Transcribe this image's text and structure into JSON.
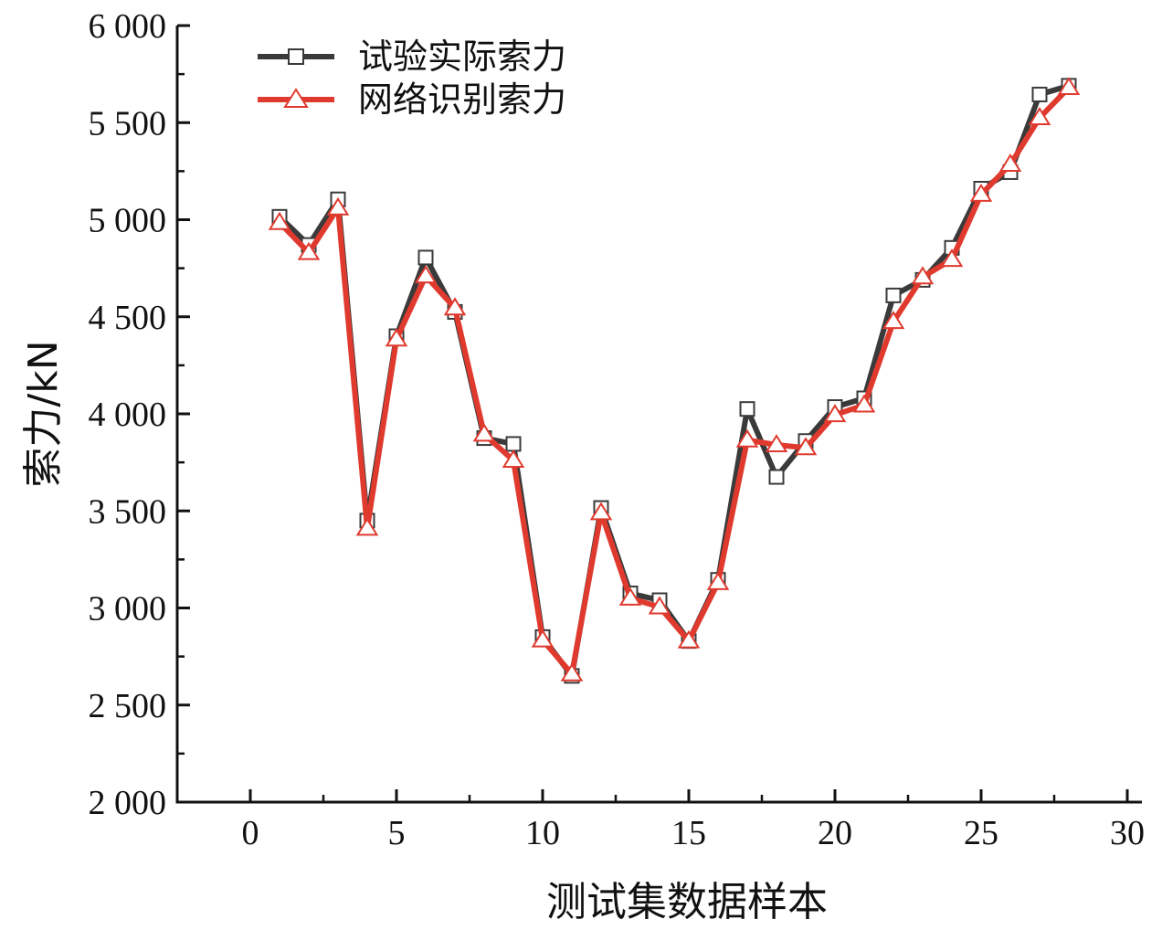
{
  "chart_data": {
    "type": "line",
    "xlabel": "测试集数据样本",
    "ylabel": "索力/kN",
    "xlim": [
      -2.5,
      30.5
    ],
    "ylim": [
      2000,
      6000
    ],
    "x_ticks": [
      0,
      5,
      10,
      15,
      20,
      25,
      30
    ],
    "x_tick_labels": [
      "0",
      "5",
      "10",
      "15",
      "20",
      "25",
      "30"
    ],
    "y_ticks": [
      2000,
      2500,
      3000,
      3500,
      4000,
      4500,
      5000,
      5500,
      6000
    ],
    "y_tick_labels": [
      "2 000",
      "2 500",
      "3 000",
      "3 500",
      "4 000",
      "4 500",
      "5 000",
      "5 500",
      "6 000"
    ],
    "legend_position": "top-left",
    "grid": false,
    "x": [
      1,
      2,
      3,
      4,
      5,
      6,
      7,
      8,
      9,
      10,
      11,
      12,
      13,
      14,
      15,
      16,
      17,
      18,
      19,
      20,
      21,
      22,
      23,
      24,
      25,
      26,
      27,
      28
    ],
    "series": [
      {
        "name": "试验实际索力",
        "color": "#3a3a3a",
        "marker": "square",
        "values": [
          5015,
          4870,
          5105,
          3450,
          4400,
          4805,
          4525,
          3875,
          3845,
          2850,
          2650,
          3515,
          3075,
          3040,
          2830,
          3145,
          4025,
          3675,
          3860,
          4035,
          4080,
          4610,
          4690,
          4855,
          5160,
          5245,
          5645,
          5690
        ]
      },
      {
        "name": "网络识别索力",
        "color": "#e03a2f",
        "marker": "triangle",
        "values": [
          4985,
          4830,
          5060,
          3410,
          4385,
          4710,
          4545,
          3895,
          3760,
          2835,
          2660,
          3490,
          3050,
          3005,
          2830,
          3130,
          3865,
          3840,
          3825,
          3995,
          4045,
          4475,
          4705,
          4795,
          5130,
          5285,
          5525,
          5680
        ]
      }
    ]
  }
}
